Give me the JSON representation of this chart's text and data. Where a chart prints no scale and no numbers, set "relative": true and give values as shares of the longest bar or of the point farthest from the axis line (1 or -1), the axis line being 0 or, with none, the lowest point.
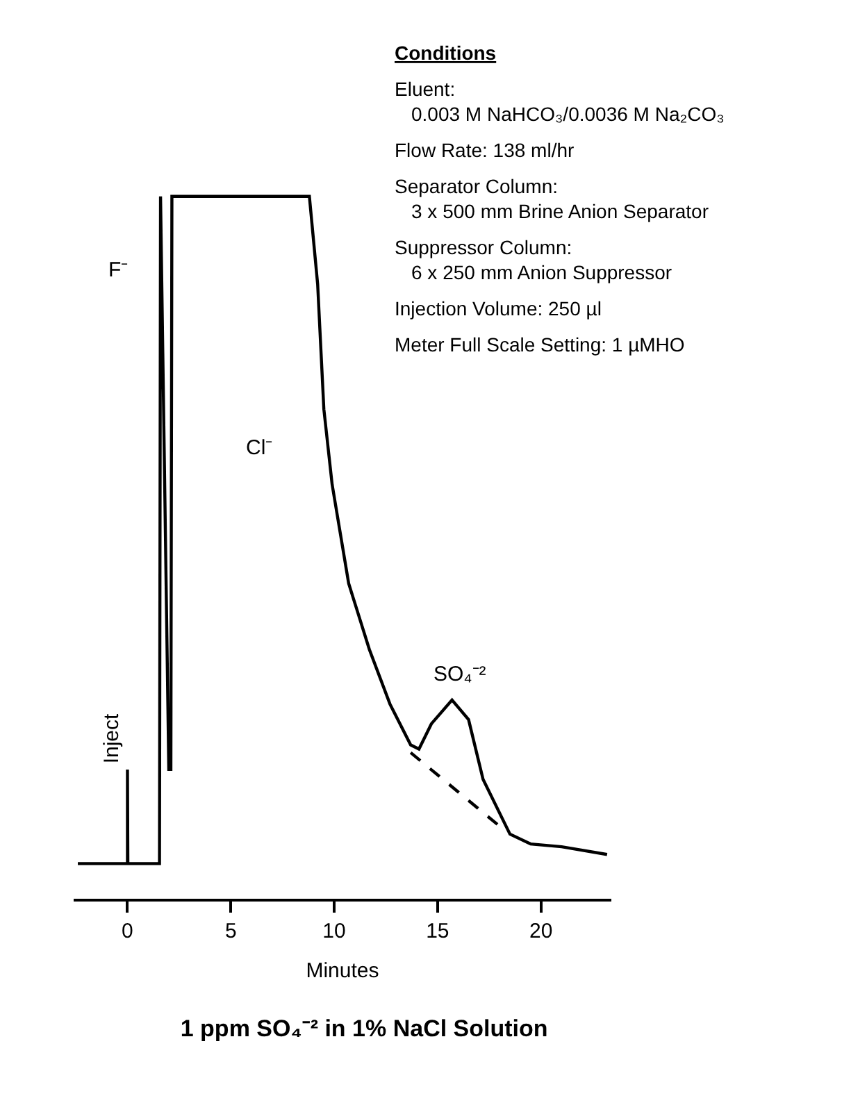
{
  "chart_data": {
    "type": "line",
    "relative": true,
    "title": "1 ppm SO₄⁻² in 1% NaCl Solution",
    "xlabel": "Minutes",
    "xlim": [
      -2.6,
      23.4
    ],
    "xticks": [
      0,
      5,
      10,
      15,
      20
    ],
    "marker": "none",
    "series": [
      {
        "color": "#000000",
        "line_style": "solid",
        "x": [
          -2.4,
          0,
          0,
          0.02,
          1.55,
          1.6,
          2.0,
          2.1,
          2.15,
          8.8,
          9.2,
          9.5,
          9.9,
          10.7,
          11.7,
          12.7,
          13.7,
          14.1,
          14.7,
          15.7,
          16.5,
          17.2,
          18.5,
          19.5,
          21.0,
          23.2
        ],
        "values": [
          0.05,
          0.05,
          0.184,
          0.05,
          0.05,
          1,
          0.184,
          0.184,
          1,
          1,
          0.875,
          0.697,
          0.59,
          0.449,
          0.355,
          0.277,
          0.219,
          0.213,
          0.249,
          0.283,
          0.255,
          0.17,
          0.092,
          0.078,
          0.074,
          0.063
        ]
      },
      {
        "color": "#000000",
        "line_style": "dashed",
        "x": [
          13.7,
          18.3
        ],
        "values": [
          0.208,
          0.096
        ]
      }
    ],
    "annotations": [
      {
        "text": "Inject",
        "x": 0,
        "y": 0.184
      },
      {
        "text": "F⁻",
        "x": 1.6,
        "y": 0.895
      },
      "Cl⁻",
      {
        "text": "SO₄⁻²",
        "x": 15.7,
        "y": 0.283
      },
      "Conditions",
      "Eluent:\n0.003 M NaHCO₃/0.0036 M Na₂CO₃",
      "Flow Rate: 138 ml/hr",
      "Separator Column:\n3 x 500 mm Brine Anion Separator",
      "Suppressor Column:\n6 x 250 mm Anion Suppressor",
      "Injection Volume: 250 µl",
      "Meter Full Scale Setting: 1 µMHO"
    ]
  }
}
